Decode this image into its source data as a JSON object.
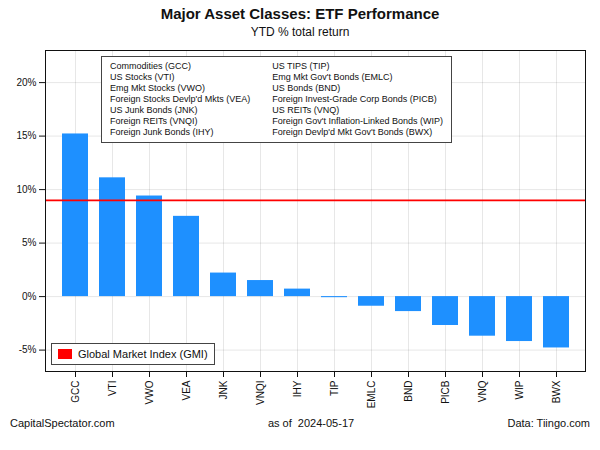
{
  "chart_data": {
    "type": "bar",
    "title": "Major Asset Classes: ETF Performance",
    "subtitle": "YTD % total return",
    "categories": [
      "GCC",
      "VTI",
      "VWO",
      "VEA",
      "JNK",
      "VNQI",
      "IHY",
      "TIP",
      "EMLC",
      "BND",
      "PICB",
      "VNQ",
      "WIP",
      "BWX"
    ],
    "values": [
      15.2,
      11.1,
      9.4,
      7.5,
      2.2,
      1.5,
      0.7,
      -0.1,
      -0.9,
      -1.4,
      -2.7,
      -3.7,
      -4.2,
      -4.8
    ],
    "color": "#1e90ff",
    "ylim": [
      -7,
      23
    ],
    "yticks": [
      {
        "value": -5,
        "label": "-5%"
      },
      {
        "value": 0,
        "label": "0%"
      },
      {
        "value": 5,
        "label": "5%"
      },
      {
        "value": 10,
        "label": "10%"
      },
      {
        "value": 15,
        "label": "15%"
      },
      {
        "value": 20,
        "label": "20%"
      }
    ],
    "grid": true,
    "legend": "lower left",
    "reference_line": {
      "name": "Global Market Index (GMI)",
      "value": 9.0,
      "color": "#ff0000"
    },
    "annotations": [
      [
        "Commodities (GCC)",
        "US Stocks (VTI)",
        "Emg Mkt Stocks (VWO)",
        "Foreign Stocks Devlp'd Mkts (VEA)",
        "US Junk Bonds (JNK)",
        "Foreign REITs (VNQI)",
        "Foreign Junk Bonds (IHY)"
      ],
      [
        "US TIPS (TIP)",
        "Emg Mkt Gov't Bonds (EMLC)",
        "US Bonds (BND)",
        "Foreign Invest-Grade Corp Bonds (PICB)",
        "US REITs (VNQ)",
        "Foreign Gov't Inflation-Linked Bonds (WIP)",
        "Foreign Devlp'd Mkt Gov't Bonds (BWX)"
      ]
    ],
    "footer": [
      "CapitalSpectator.com",
      "as of  2024-05-17",
      "Data: Tiingo.com"
    ]
  }
}
